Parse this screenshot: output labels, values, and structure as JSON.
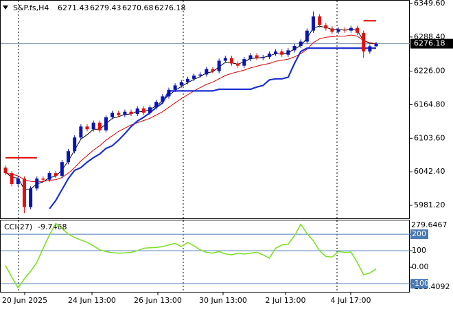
{
  "chart_data": [
    {
      "type": "candlestick",
      "symbol": "S&P.fs,H4",
      "open": [
        6050,
        6040,
        6020,
        6030,
        5978,
        6012,
        6030,
        6028,
        6040,
        6035,
        6060,
        6080,
        6105,
        6125,
        6120,
        6132,
        6118,
        6142,
        6150,
        6146,
        6152,
        6148,
        6158,
        6150,
        6160,
        6170,
        6180,
        6192,
        6200,
        6206,
        6212,
        6218,
        6220,
        6230,
        6226,
        6245,
        6250,
        6240,
        6236,
        6248,
        6255,
        6250,
        6252,
        6258,
        6262,
        6256,
        6264,
        6272,
        6280,
        6300,
        6326,
        6310,
        6304,
        6298,
        6302,
        6300,
        6305,
        6296,
        6262,
        6271.43
      ],
      "high": [
        6054,
        6044,
        6034,
        6034,
        6016,
        6034,
        6034,
        6044,
        6044,
        6064,
        6084,
        6109,
        6129,
        6129,
        6136,
        6136,
        6146,
        6154,
        6154,
        6156,
        6156,
        6162,
        6162,
        6164,
        6174,
        6184,
        6196,
        6204,
        6210,
        6216,
        6222,
        6224,
        6234,
        6234,
        6249,
        6254,
        6254,
        6244,
        6252,
        6259,
        6259,
        6256,
        6262,
        6266,
        6266,
        6268,
        6276,
        6284,
        6304,
        6335,
        6330,
        6314,
        6308,
        6306,
        6306,
        6309,
        6309,
        6300,
        6275,
        6279.43
      ],
      "low": [
        6036,
        6016,
        6016,
        5967,
        5974,
        6008,
        6024,
        6024,
        6031,
        6031,
        6056,
        6076,
        6101,
        6116,
        6116,
        6114,
        6114,
        6138,
        6142,
        6142,
        6144,
        6144,
        6146,
        6146,
        6156,
        6166,
        6176,
        6188,
        6196,
        6202,
        6208,
        6214,
        6216,
        6222,
        6222,
        6241,
        6236,
        6232,
        6232,
        6244,
        6246,
        6246,
        6248,
        6254,
        6252,
        6252,
        6260,
        6268,
        6276,
        6296,
        6306,
        6300,
        6294,
        6294,
        6296,
        6296,
        6292,
        6250,
        6258,
        6270.68
      ],
      "close": [
        6040,
        6020,
        6030,
        5978,
        6012,
        6030,
        6028,
        6040,
        6035,
        6060,
        6080,
        6105,
        6125,
        6120,
        6132,
        6118,
        6142,
        6150,
        6146,
        6152,
        6148,
        6158,
        6150,
        6160,
        6170,
        6180,
        6192,
        6200,
        6206,
        6212,
        6218,
        6220,
        6230,
        6226,
        6245,
        6250,
        6240,
        6236,
        6248,
        6255,
        6250,
        6252,
        6258,
        6262,
        6256,
        6264,
        6272,
        6280,
        6300,
        6326,
        6310,
        6304,
        6298,
        6302,
        6300,
        6305,
        6296,
        6262,
        6271.43,
        6276.18
      ],
      "up_color": "#0a14b4",
      "down_color": "#e01010",
      "series": [
        {
          "color": "#000000",
          "width": 1,
          "values": [
            6042,
            6032,
            6031,
            6010,
            6011,
            6020,
            6024,
            6032,
            6034,
            6046,
            6062,
            6082,
            6102,
            6110,
            6120,
            6120,
            6130,
            6140,
            6143,
            6147,
            6148,
            6153,
            6152,
            6156,
            6163,
            6172,
            6182,
            6191,
            6198,
            6205,
            6211,
            6216,
            6223,
            6225,
            6234,
            6242,
            6241,
            6239,
            6243,
            6249,
            6250,
            6251,
            6254,
            6258,
            6257,
            6260,
            6266,
            6273,
            6286,
            6305,
            6308,
            6306,
            6302,
            6302,
            6301,
            6303,
            6300,
            6282,
            6277,
            6276
          ]
        },
        {
          "color": "#e00000",
          "width": 1,
          "values": [
            6040,
            6038,
            6035,
            6028,
            6025,
            6024,
            6025,
            6027,
            6028,
            6032,
            6040,
            6050,
            6062,
            6072,
            6082,
            6090,
            6100,
            6108,
            6116,
            6122,
            6128,
            6132,
            6136,
            6140,
            6146,
            6152,
            6160,
            6168,
            6176,
            6183,
            6190,
            6196,
            6202,
            6206,
            6212,
            6218,
            6222,
            6225,
            6228,
            6232,
            6235,
            6238,
            6240,
            6244,
            6246,
            6248,
            6252,
            6258,
            6266,
            6278,
            6285,
            6288,
            6289,
            6290,
            6290,
            6292,
            6290,
            6282,
            6278,
            6276
          ]
        },
        {
          "color": "#1c2fd0",
          "width": 2.2,
          "values": [
            null,
            null,
            null,
            null,
            null,
            null,
            null,
            5975,
            5990,
            6010,
            6030,
            6045,
            6050,
            6060,
            6068,
            6075,
            6085,
            6090,
            6100,
            6112,
            6125,
            6135,
            6142,
            6150,
            6160,
            6168,
            6190,
            6190,
            6190,
            6190,
            6190,
            6190,
            6190,
            6190,
            6193,
            6193,
            6193,
            6193,
            6193,
            6193,
            6197,
            6200,
            6210,
            6212,
            6212,
            6215,
            6240,
            6262,
            6268,
            6268,
            6268,
            6268,
            6268,
            6268,
            6268,
            6268,
            6268,
            6268,
            6268,
            6268
          ]
        },
        {
          "color": "#e00000",
          "width": 2,
          "values": [
            6068,
            6068,
            6068,
            6068,
            6068,
            6068,
            null,
            null,
            null,
            null,
            null,
            null,
            null,
            null,
            null,
            null,
            null,
            null,
            null,
            null,
            null,
            null,
            null,
            null,
            null,
            null,
            null,
            null,
            null,
            null,
            null,
            null,
            null,
            null,
            null,
            null,
            null,
            null,
            null,
            null,
            null,
            null,
            null,
            null,
            null,
            null,
            null,
            null,
            null,
            null,
            null,
            null,
            null,
            null,
            null,
            null,
            null,
            6318,
            6318,
            6318
          ]
        }
      ],
      "ylim": [
        5957.4,
        6355.9
      ],
      "yticks": [
        {
          "value": 6349.6,
          "label": "6349.60"
        },
        {
          "value": 6288.4,
          "label": "6288.40"
        },
        {
          "value": 6226,
          "label": "6226.00"
        },
        {
          "value": 6164.8,
          "label": "6164.80"
        },
        {
          "value": 6103.6,
          "label": "6103.60"
        },
        {
          "value": 6042.4,
          "label": "6042.40"
        },
        {
          "value": 5981.2,
          "label": "5981.20"
        }
      ],
      "x_labels": [
        "20 Jun 2025",
        "24 Jun 13:00",
        "26 Jun 13:00",
        "30 Jun 13:00",
        "2 Jul 13:00",
        "4 Jul 17:00"
      ]
    },
    {
      "type": "line",
      "name": "CCI(27)",
      "color": "#7ee02a",
      "values": [
        10,
        -60,
        -125,
        -70,
        -25,
        30,
        115,
        195,
        265,
        235,
        200,
        180,
        165,
        150,
        130,
        105,
        95,
        88,
        85,
        87,
        90,
        100,
        115,
        118,
        120,
        125,
        135,
        145,
        125,
        150,
        130,
        105,
        90,
        85,
        95,
        80,
        75,
        85,
        80,
        85,
        90,
        75,
        55,
        115,
        135,
        140,
        190,
        260,
        205,
        160,
        100,
        65,
        62,
        95,
        90,
        92,
        30,
        -45,
        -35,
        -9.7468
      ],
      "ylim": [
        -153.4092,
        279.6467
      ],
      "yticks": [
        200,
        100,
        {
          "value": 0,
          "label": "0.00"
        },
        -100
      ],
      "level_color": "#4a7ab4"
    }
  ]
}
